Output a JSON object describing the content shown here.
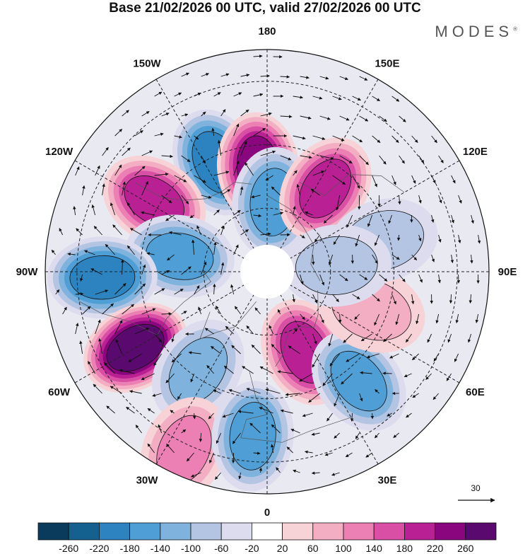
{
  "header": {
    "title": "Base 21/02/2026 00 UTC, valid 27/02/2026 00 UTC",
    "brand": "MODES"
  },
  "map": {
    "longitude_labels": [
      {
        "text": "180",
        "lon": 180
      },
      {
        "text": "150E",
        "lon": 150
      },
      {
        "text": "120E",
        "lon": 120
      },
      {
        "text": "90E",
        "lon": 90
      },
      {
        "text": "60E",
        "lon": 60
      },
      {
        "text": "30E",
        "lon": 30
      },
      {
        "text": "0",
        "lon": 0
      },
      {
        "text": "30W",
        "lon": -30
      },
      {
        "text": "60W",
        "lon": -60
      },
      {
        "text": "90W",
        "lon": -90
      },
      {
        "text": "120W",
        "lon": -120
      },
      {
        "text": "150W",
        "lon": -150
      }
    ],
    "anomaly_centers": [
      {
        "lon": -155,
        "lat": 52,
        "value": -200
      },
      {
        "lon": -175,
        "lat": 57,
        "value": 230
      },
      {
        "lon": 175,
        "lat": 68,
        "value": -150
      },
      {
        "lon": 145,
        "lat": 58,
        "value": 200
      },
      {
        "lon": -122,
        "lat": 48,
        "value": 190
      },
      {
        "lon": -100,
        "lat": 62,
        "value": -170
      },
      {
        "lon": -88,
        "lat": 38,
        "value": -190
      },
      {
        "lon": -60,
        "lat": 42,
        "value": 270
      },
      {
        "lon": -35,
        "lat": 52,
        "value": -110
      },
      {
        "lon": -25,
        "lat": 28,
        "value": 110
      },
      {
        "lon": -5,
        "lat": 38,
        "value": -170
      },
      {
        "lon": 25,
        "lat": 62,
        "value": 190
      },
      {
        "lon": 40,
        "lat": 45,
        "value": -150
      },
      {
        "lon": 70,
        "lat": 55,
        "value": 80
      },
      {
        "lon": 105,
        "lat": 52,
        "value": -80
      },
      {
        "lon": 95,
        "lat": 68,
        "value": -70
      }
    ],
    "reference_vector": "30"
  },
  "colorbar": {
    "ticks": [
      "-260",
      "-220",
      "-180",
      "-140",
      "-100",
      "-60",
      "-20",
      "20",
      "60",
      "100",
      "140",
      "180",
      "220",
      "260"
    ],
    "colors": [
      "#0b3b5c",
      "#14618f",
      "#2c83bf",
      "#4f9fd6",
      "#7fb3dd",
      "#b4c4e3",
      "#dcdcee",
      "#ffffff",
      "#f7d2d6",
      "#f3aec3",
      "#ec7fb3",
      "#d94fa6",
      "#b82093",
      "#8a067f",
      "#5a0a6e"
    ]
  }
}
